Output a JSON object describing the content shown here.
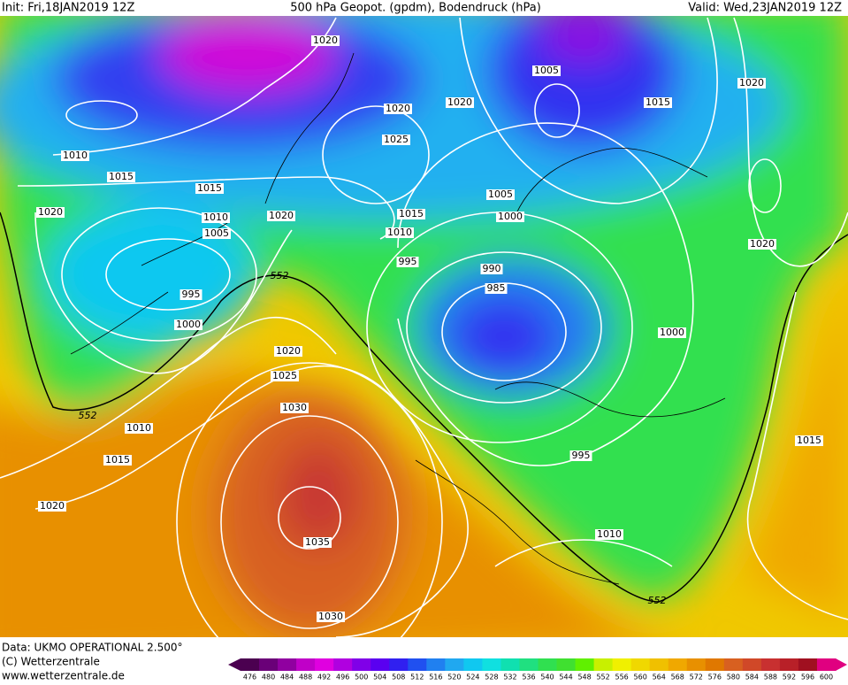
{
  "header": {
    "init": "Init: Fri,18JAN2019 12Z",
    "title": "500 hPa Geopot. (gpdm), Bodendruck (hPa)",
    "valid": "Valid: Wed,23JAN2019 12Z"
  },
  "isobar_labels": [
    "1020",
    "1005",
    "1020",
    "1020",
    "1015",
    "1020",
    "1025",
    "1010",
    "1015",
    "1015",
    "1005",
    "1020",
    "1010",
    "1020",
    "1015",
    "1000",
    "1005",
    "1010",
    "1020",
    "995",
    "990",
    "552",
    "985",
    "995",
    "1000",
    "1000",
    "1020",
    "1025",
    "1030",
    "552",
    "1010",
    "1015",
    "995",
    "1015",
    "1020",
    "1010",
    "1035",
    "552",
    "1030"
  ],
  "footer": {
    "data": "Data: UKMO OPERATIONAL 2.500°",
    "copyright": "(C) Wetterzentrale",
    "url": "www.wetterzentrale.de"
  },
  "colorbar": {
    "labels": [
      476,
      480,
      484,
      488,
      492,
      496,
      500,
      504,
      508,
      512,
      516,
      520,
      524,
      528,
      532,
      536,
      540,
      544,
      548,
      552,
      556,
      560,
      564,
      568,
      572,
      576,
      580,
      584,
      588,
      592,
      596,
      600
    ],
    "colors": [
      "#4b0050",
      "#6a0078",
      "#9000a0",
      "#c000c8",
      "#e000e0",
      "#b000e0",
      "#8000e8",
      "#5a00f0",
      "#3020f0",
      "#2050f0",
      "#2080f0",
      "#20a8f0",
      "#10c8f0",
      "#10e0e0",
      "#10e0b0",
      "#20e080",
      "#30e050",
      "#40e030",
      "#60f000",
      "#c8f000",
      "#f0f000",
      "#f0d800",
      "#f0c000",
      "#f0a800",
      "#e89000",
      "#e07800",
      "#d86020",
      "#d04828",
      "#c83030",
      "#b82028",
      "#a01020",
      "#e00080"
    ]
  }
}
